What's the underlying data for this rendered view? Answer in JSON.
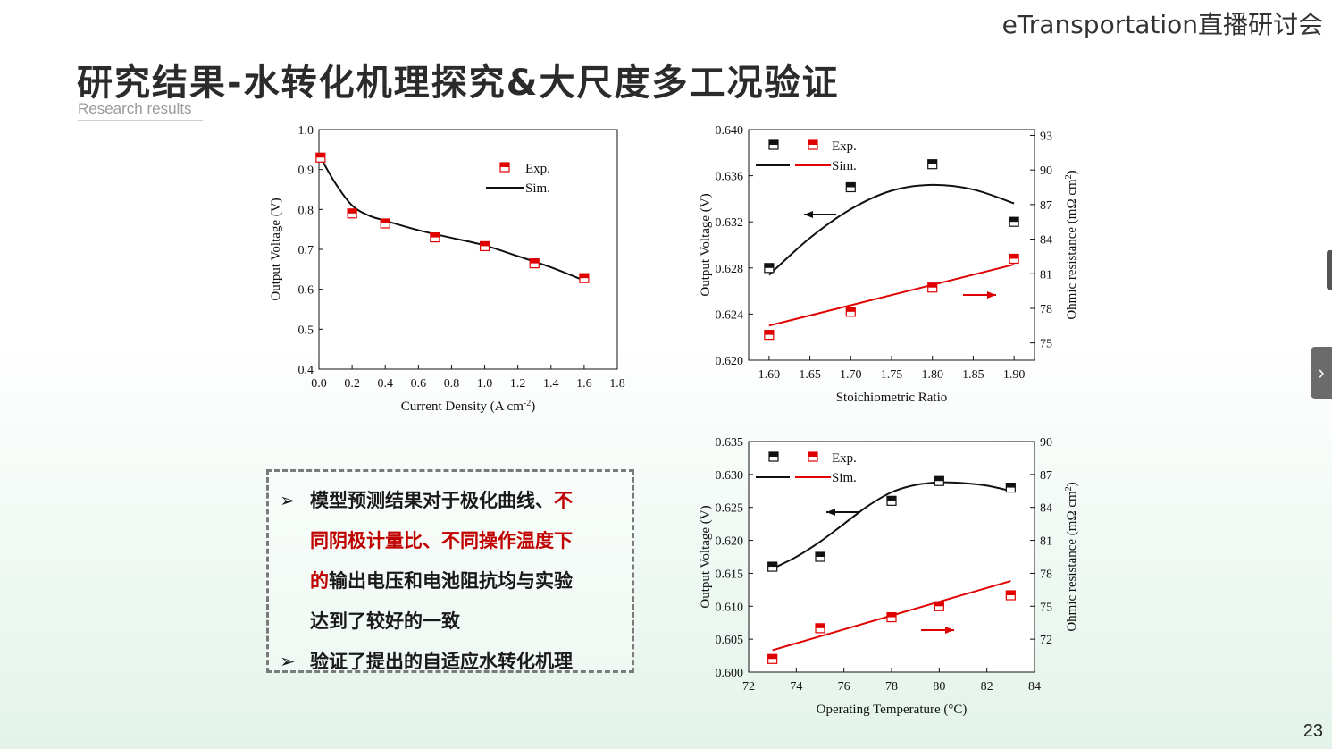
{
  "header": {
    "org": "eTransportation直播研讨会",
    "title": "研究结果-水转化机理探究&大尺度多工况验证",
    "subtitle": "Research results",
    "page_number": "23"
  },
  "callout": {
    "arrow_glyph": "➢",
    "b1_part1": "模型预测结果对于极化曲线、",
    "b1_red1": "不",
    "b1_red2": "同阴极计量比、不同操作温度下",
    "b1_red3": "的",
    "b1_part2": "输出电压和电池阻抗均与实验",
    "b1_part3": "达到了较好的一致",
    "b2": "验证了提出的自适应水转化机理"
  },
  "side_tab": {
    "glyph": "›"
  },
  "chart_data": [
    {
      "type": "line",
      "xlabel": "Current Density (A cm",
      "xlabel_sup": "-2",
      "xlabel_tail": ")",
      "ylabel": "Output Voltage (V)",
      "xlim": [
        0,
        1.8
      ],
      "ylim": [
        0.4,
        1.0
      ],
      "x_ticks": [
        "0.0",
        "0.2",
        "0.4",
        "0.6",
        "0.8",
        "1.0",
        "1.2",
        "1.4",
        "1.6",
        "1.8"
      ],
      "y_ticks": [
        "0.4",
        "0.5",
        "0.6",
        "0.7",
        "0.8",
        "0.9",
        "1.0"
      ],
      "legend": {
        "exp": "Exp.",
        "sim": "Sim."
      },
      "exp_x": [
        0.01,
        0.2,
        0.4,
        0.7,
        1.0,
        1.3,
        1.6
      ],
      "exp_y": [
        0.93,
        0.79,
        0.765,
        0.73,
        0.708,
        0.665,
        0.628
      ],
      "sim_x": [
        0.01,
        0.1,
        0.2,
        0.3,
        0.4,
        0.6,
        0.8,
        1.0,
        1.2,
        1.4,
        1.6
      ],
      "sim_y": [
        0.93,
        0.865,
        0.81,
        0.785,
        0.772,
        0.748,
        0.729,
        0.71,
        0.683,
        0.655,
        0.622
      ]
    },
    {
      "type": "line",
      "xlabel": "Stoichiometric Ratio",
      "ylabel": "Output Voltage (V)",
      "ylabel_right": "Ohmic resistance (mΩ cm",
      "ylabel_right_sup": "2",
      "ylabel_right_tail": ")",
      "xlim": [
        1.575,
        1.925
      ],
      "ylim": [
        0.62,
        0.64
      ],
      "ylim_right": [
        73.5,
        93.5
      ],
      "x_ticks": [
        "1.60",
        "1.65",
        "1.70",
        "1.75",
        "1.80",
        "1.85",
        "1.90"
      ],
      "y_ticks": [
        "0.620",
        "0.624",
        "0.628",
        "0.632",
        "0.636",
        "0.640"
      ],
      "y_ticks_right": [
        "75",
        "78",
        "81",
        "84",
        "87",
        "90",
        "93"
      ],
      "legend": {
        "exp": "Exp.",
        "sim": "Sim."
      },
      "voltage_exp_x": [
        1.6,
        1.7,
        1.8,
        1.9
      ],
      "voltage_exp_y": [
        0.628,
        0.635,
        0.637,
        0.632
      ],
      "voltage_sim_x": [
        1.6,
        1.65,
        1.7,
        1.75,
        1.8,
        1.85,
        1.9
      ],
      "voltage_sim_y": [
        0.6274,
        0.6306,
        0.6331,
        0.6347,
        0.6352,
        0.6348,
        0.6336
      ],
      "resistance_exp_x": [
        1.6,
        1.7,
        1.8,
        1.9
      ],
      "resistance_exp_y": [
        75.7,
        77.7,
        79.8,
        82.3
      ],
      "resistance_sim_x": [
        1.6,
        1.9
      ],
      "resistance_sim_y": [
        76.5,
        81.8
      ]
    },
    {
      "type": "line",
      "xlabel": "Operating Temperature (°C)",
      "ylabel": "Output Voltage (V)",
      "ylabel_right": "Ohmic resistance (mΩ cm",
      "ylabel_right_sup": "2",
      "ylabel_right_tail": ")",
      "xlim": [
        72,
        84
      ],
      "ylim": [
        0.6,
        0.635
      ],
      "ylim_right": [
        69,
        90
      ],
      "x_ticks": [
        "72",
        "74",
        "76",
        "78",
        "80",
        "82",
        "84"
      ],
      "y_ticks": [
        "0.600",
        "0.605",
        "0.610",
        "0.615",
        "0.620",
        "0.625",
        "0.630",
        "0.635"
      ],
      "y_ticks_right": [
        "72",
        "75",
        "78",
        "81",
        "84",
        "87",
        "90"
      ],
      "legend": {
        "exp": "Exp.",
        "sim": "Sim."
      },
      "voltage_exp_x": [
        73,
        75,
        78,
        80,
        83
      ],
      "voltage_exp_y": [
        0.616,
        0.6175,
        0.626,
        0.629,
        0.628
      ],
      "voltage_sim_x": [
        73,
        74,
        75,
        76,
        77,
        78,
        79,
        80,
        81,
        82,
        83
      ],
      "voltage_sim_y": [
        0.6157,
        0.6175,
        0.6198,
        0.6225,
        0.6252,
        0.6273,
        0.6284,
        0.6288,
        0.6287,
        0.6283,
        0.6275
      ],
      "resistance_exp_x": [
        73,
        75,
        78,
        80,
        83
      ],
      "resistance_exp_y": [
        70.2,
        73.0,
        74.0,
        75.0,
        76.0
      ],
      "resistance_sim_x": [
        73,
        83
      ],
      "resistance_sim_y": [
        71.0,
        77.3
      ]
    }
  ]
}
